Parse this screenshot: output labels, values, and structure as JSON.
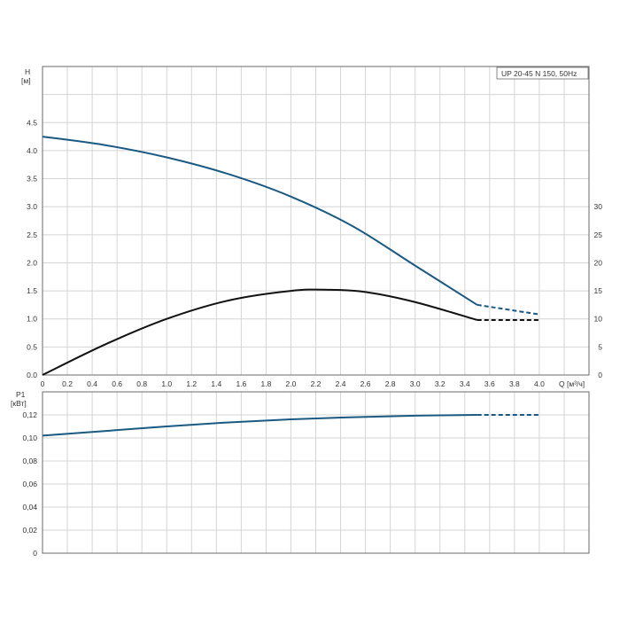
{
  "chart_data": [
    {
      "type": "line",
      "title": "UP 20-45 N 150, 50Hz",
      "xlabel": "Q [м³/ч]",
      "ylabel": "H [м]",
      "ylabel_right": "",
      "xlim": [
        0,
        4.4
      ],
      "ylim": [
        0,
        5.5
      ],
      "ylim_right": [
        0,
        55
      ],
      "x_ticks": [
        "0",
        "0.2",
        "0.4",
        "0.6",
        "0.8",
        "1.0",
        "1.2",
        "1.4",
        "1.6",
        "1.8",
        "2.0",
        "2.2",
        "2.4",
        "2.6",
        "2.8",
        "3.0",
        "3.2",
        "3.4",
        "3.6",
        "3.8",
        "4.0"
      ],
      "y_ticks": [
        "0.0",
        "0.5",
        "1.0",
        "1.5",
        "2.0",
        "2.5",
        "3.0",
        "3.5",
        "4.0",
        "4.5"
      ],
      "y_ticks_right": [
        "0",
        "5",
        "10",
        "15",
        "20",
        "25",
        "30"
      ],
      "grid": true,
      "legend": "top-right",
      "colors": {
        "head": "#1a5a82",
        "efficiency": "#111111"
      },
      "series": [
        {
          "id": "head",
          "axis": "left",
          "color": "#1a5a82",
          "x": [
            0,
            0.5,
            1.0,
            1.5,
            2.0,
            2.5,
            3.0,
            3.5
          ],
          "values": [
            4.25,
            4.1,
            3.88,
            3.58,
            3.18,
            2.65,
            1.95,
            1.25
          ],
          "dashed_x": [
            3.5,
            4.0
          ],
          "dashed_values": [
            1.25,
            1.08
          ]
        },
        {
          "id": "efficiency",
          "axis": "right",
          "color": "#111111",
          "x": [
            0,
            0.5,
            1.0,
            1.5,
            2.0,
            2.3,
            2.6,
            3.0,
            3.5
          ],
          "values": [
            0,
            5.4,
            10.0,
            13.3,
            15.0,
            15.2,
            14.8,
            13.0,
            9.8
          ],
          "dashed_x": [
            3.5,
            4.0
          ],
          "dashed_values": [
            9.8,
            9.8
          ]
        }
      ]
    },
    {
      "type": "line",
      "title": "",
      "xlabel": "",
      "ylabel": "P1 [кВт]",
      "xlim": [
        0,
        4.4
      ],
      "ylim": [
        0,
        0.14
      ],
      "y_ticks": [
        "0",
        "0,02",
        "0,04",
        "0,06",
        "0,08",
        "0,10",
        "0,12"
      ],
      "grid": true,
      "series": [
        {
          "id": "power",
          "axis": "left",
          "color": "#1a5a82",
          "x": [
            0,
            0.5,
            1.0,
            1.5,
            2.0,
            2.5,
            3.0,
            3.5
          ],
          "values": [
            0.102,
            0.106,
            0.11,
            0.1135,
            0.1162,
            0.118,
            0.1193,
            0.12
          ],
          "dashed_x": [
            3.5,
            4.0
          ],
          "dashed_values": [
            0.12,
            0.12
          ]
        }
      ]
    }
  ]
}
